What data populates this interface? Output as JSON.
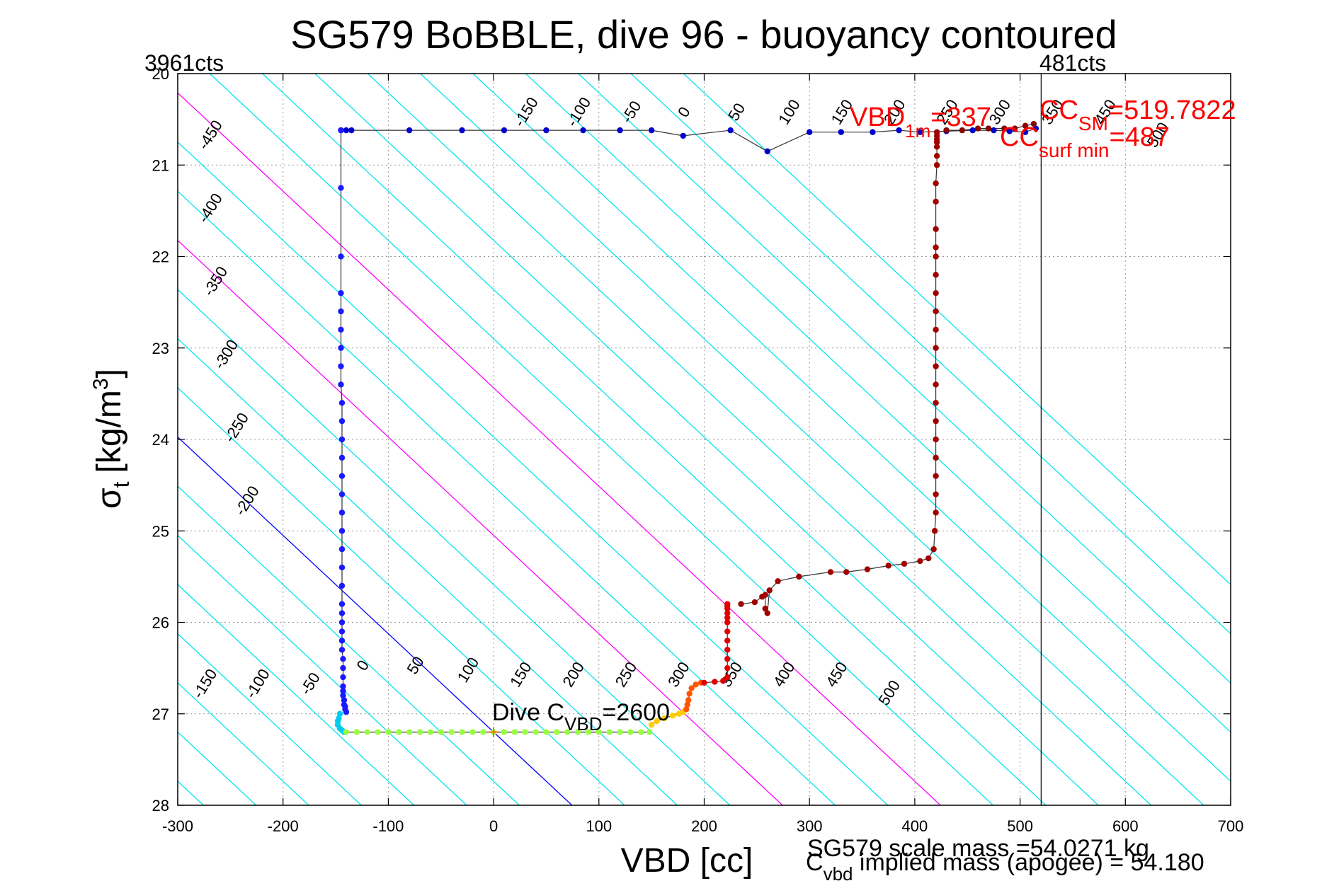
{
  "chart_data": {
    "type": "scatter",
    "title": "SG579 BoBBLE, dive 96 - buoyancy contoured",
    "xlabel": "VBD [cc]",
    "ylabel_main": "σ",
    "ylabel_sub": "t",
    "ylabel_unit": "[kg/m",
    "ylabel_sup": "3",
    "ylabel_close": "]",
    "xlim": [
      -300,
      700
    ],
    "ylim": [
      20,
      28
    ],
    "y_reversed": true,
    "grid": true,
    "x_ticks": [
      -300,
      -200,
      -100,
      0,
      100,
      200,
      300,
      400,
      500,
      600,
      700
    ],
    "x_tick_labels": [
      "-300",
      "-200",
      "-100",
      "0",
      "100",
      "200",
      "300",
      "400",
      "500",
      "600",
      "700"
    ],
    "y_ticks": [
      20,
      21,
      22,
      23,
      24,
      25,
      26,
      27,
      28
    ],
    "y_tick_labels": [
      "20",
      "21",
      "22",
      "23",
      "24",
      "25",
      "26",
      "27",
      "28"
    ],
    "top_left_label": "3961cts",
    "top_right_label": "481cts",
    "cc_vertical_line_x": 520,
    "contour_lines": {
      "slope_cc_per_sigma": 93,
      "ref_sigma": 27.2,
      "offsets": [
        -450,
        -400,
        -350,
        -300,
        -250,
        -200,
        -150,
        -100,
        -50,
        0,
        50,
        100,
        150,
        200,
        250,
        300,
        350,
        400,
        450,
        500,
        550,
        600,
        650,
        700,
        750,
        800,
        850
      ],
      "zero_color": "#0000ff",
      "special_offsets": [
        200,
        350
      ],
      "special_color": "#ff00ff",
      "default_color": "#00e5ee"
    },
    "contour_labels_top": [
      {
        "text": "-450",
        "x": -265,
        "y": 20.7
      },
      {
        "text": "-400",
        "x": -265,
        "y": 21.5
      },
      {
        "text": "-350",
        "x": -260,
        "y": 22.3
      },
      {
        "text": "-300",
        "x": -250,
        "y": 23.1
      },
      {
        "text": "-250",
        "x": -240,
        "y": 23.9
      },
      {
        "text": "-200",
        "x": -230,
        "y": 24.7
      },
      {
        "text": "-150",
        "x": 35,
        "y": 20.45
      },
      {
        "text": "-100",
        "x": 85,
        "y": 20.45
      },
      {
        "text": "-50",
        "x": 135,
        "y": 20.45
      },
      {
        "text": "0",
        "x": 185,
        "y": 20.45
      },
      {
        "text": "50",
        "x": 235,
        "y": 20.45
      },
      {
        "text": "100",
        "x": 285,
        "y": 20.45
      },
      {
        "text": "150",
        "x": 335,
        "y": 20.45
      },
      {
        "text": "200",
        "x": 385,
        "y": 20.45
      },
      {
        "text": "250",
        "x": 435,
        "y": 20.45
      },
      {
        "text": "300",
        "x": 485,
        "y": 20.45
      },
      {
        "text": "350",
        "x": 535,
        "y": 20.45
      },
      {
        "text": "450",
        "x": 585,
        "y": 20.45
      },
      {
        "text": "500",
        "x": 635,
        "y": 20.7
      }
    ],
    "contour_labels_bottom": [
      {
        "text": "-150",
        "x": -270,
        "y": 26.7
      },
      {
        "text": "-100",
        "x": -220,
        "y": 26.7
      },
      {
        "text": "-50",
        "x": -170,
        "y": 26.7
      },
      {
        "text": "0",
        "x": -120,
        "y": 26.5
      },
      {
        "text": "50",
        "x": -70,
        "y": 26.5
      },
      {
        "text": "100",
        "x": -20,
        "y": 26.55
      },
      {
        "text": "150",
        "x": 30,
        "y": 26.6
      },
      {
        "text": "200",
        "x": 80,
        "y": 26.6
      },
      {
        "text": "250",
        "x": 130,
        "y": 26.6
      },
      {
        "text": "300",
        "x": 180,
        "y": 26.6
      },
      {
        "text": "350",
        "x": 230,
        "y": 26.6
      },
      {
        "text": "400",
        "x": 280,
        "y": 26.6
      },
      {
        "text": "450",
        "x": 330,
        "y": 26.6
      },
      {
        "text": "500",
        "x": 380,
        "y": 26.8
      }
    ],
    "series": [
      {
        "x": [
          -145,
          -140,
          -135,
          -80,
          -30,
          10,
          50,
          85,
          120,
          150,
          180,
          225,
          260,
          300,
          330,
          360,
          385,
          405,
          430,
          455,
          475,
          490,
          505,
          515
        ],
        "y": [
          20.62,
          20.62,
          20.62,
          20.62,
          20.62,
          20.62,
          20.62,
          20.62,
          20.62,
          20.62,
          20.68,
          20.62,
          20.85,
          20.64,
          20.64,
          20.64,
          20.62,
          20.64,
          20.63,
          20.62,
          20.62,
          20.63,
          20.64,
          20.6
        ],
        "color": "#0000cc"
      },
      {
        "x": [
          -145,
          -145,
          -145,
          -145,
          -145,
          -145,
          -145,
          -145,
          -145,
          -144,
          -144,
          -144,
          -144,
          -144,
          -144,
          -144,
          -144,
          -144,
          -144,
          -144,
          -144,
          -144,
          -144,
          -144,
          -144,
          -144,
          -143,
          -143,
          -143,
          -143,
          -143,
          -143,
          -142,
          -142,
          -141,
          -141,
          -140
        ],
        "y": [
          20.62,
          21.25,
          22.0,
          22.4,
          22.6,
          22.8,
          23.0,
          23.2,
          23.4,
          23.6,
          23.8,
          24.0,
          24.2,
          24.4,
          24.6,
          24.8,
          25.0,
          25.2,
          25.4,
          25.6,
          25.8,
          25.9,
          26.0,
          26.1,
          26.2,
          26.3,
          26.4,
          26.5,
          26.6,
          26.7,
          26.75,
          26.8,
          26.85,
          26.9,
          26.92,
          26.95,
          26.98
        ],
        "color": "#1a1aff"
      },
      {
        "x": [
          -146,
          -147,
          -148,
          -148,
          -146,
          -144,
          -142
        ],
        "y": [
          27.0,
          27.05,
          27.08,
          27.12,
          27.16,
          27.18,
          27.2
        ],
        "color": "#00ccee"
      },
      {
        "x": [
          -140,
          -130,
          -120,
          -110,
          -100,
          -90,
          -80,
          -70,
          -60,
          -50,
          -40,
          -30,
          -20,
          -10,
          0,
          10,
          20,
          30,
          40,
          50,
          60,
          70,
          80,
          90,
          100,
          110,
          120,
          130,
          140,
          148
        ],
        "y": [
          27.2,
          27.2,
          27.2,
          27.2,
          27.2,
          27.2,
          27.2,
          27.2,
          27.2,
          27.2,
          27.2,
          27.2,
          27.2,
          27.2,
          27.2,
          27.2,
          27.2,
          27.2,
          27.2,
          27.2,
          27.2,
          27.2,
          27.2,
          27.2,
          27.2,
          27.2,
          27.2,
          27.2,
          27.2,
          27.2
        ],
        "color": "#99ff44"
      },
      {
        "x": [
          150,
          155,
          162,
          170,
          176,
          180
        ],
        "y": [
          27.12,
          27.08,
          27.05,
          27.02,
          27.0,
          26.98
        ],
        "color": "#ffcc00"
      },
      {
        "x": [
          183,
          184,
          185,
          186,
          188,
          192,
          197
        ],
        "y": [
          26.95,
          26.9,
          26.85,
          26.78,
          26.72,
          26.68,
          26.66
        ],
        "color": "#ff5500"
      },
      {
        "x": [
          200,
          210,
          218,
          222,
          222,
          222,
          222,
          222,
          222,
          222,
          222,
          222,
          222,
          222,
          222
        ],
        "y": [
          26.66,
          26.65,
          26.64,
          26.6,
          26.5,
          26.4,
          26.3,
          26.2,
          26.1,
          26.0,
          25.95,
          25.9,
          25.85,
          25.82,
          25.8
        ],
        "color": "#e00000"
      },
      {
        "x": [
          235,
          248,
          255,
          258,
          258,
          260,
          262,
          270,
          290,
          320,
          335,
          355,
          375,
          390,
          405,
          413,
          418,
          419,
          420,
          420,
          420,
          420,
          420,
          420,
          420,
          420,
          420,
          420,
          420,
          420,
          420,
          420,
          420,
          420,
          420,
          420,
          420,
          421,
          421,
          421,
          421,
          421,
          421,
          421
        ],
        "y": [
          25.8,
          25.78,
          25.72,
          25.7,
          25.85,
          25.9,
          25.65,
          25.55,
          25.5,
          25.45,
          25.45,
          25.42,
          25.38,
          25.36,
          25.33,
          25.3,
          25.2,
          25.0,
          24.8,
          24.6,
          24.4,
          24.2,
          24.0,
          23.8,
          23.6,
          23.4,
          23.2,
          23.0,
          22.8,
          22.6,
          22.4,
          22.2,
          22.0,
          21.9,
          21.7,
          21.4,
          21.2,
          21.0,
          20.9,
          20.8,
          20.75,
          20.72,
          20.68,
          20.64
        ],
        "color": "#a00000"
      },
      {
        "x": [
          430,
          445,
          460,
          470,
          485,
          495,
          505,
          513
        ],
        "y": [
          20.62,
          20.62,
          20.6,
          20.6,
          20.6,
          20.6,
          20.57,
          20.55
        ],
        "color": "#8b0000"
      }
    ],
    "dive_marker": {
      "x": 0,
      "y": 27.2,
      "color": "#ff6600"
    },
    "dive_label": {
      "prefix": "Dive C",
      "sub": "VBD",
      "suffix": "=2600",
      "x": 0,
      "y": 27.05
    },
    "annotations": {
      "vbd1m": {
        "prefix": "VBD",
        "sub": "1m",
        "suffix": "=337"
      },
      "ccsm": {
        "prefix": "CC",
        "sub": "SM",
        "suffix": "=519.7822"
      },
      "ccsurf": {
        "prefix": "CC",
        "sub": "surf min",
        "suffix": "=487"
      },
      "scale_mass": "SG579 scale mass =54.0271 kg",
      "implied_prefix": "C",
      "implied_sub": "vbd",
      "implied_suffix": " implied mass (apogee) = 54.180"
    }
  }
}
